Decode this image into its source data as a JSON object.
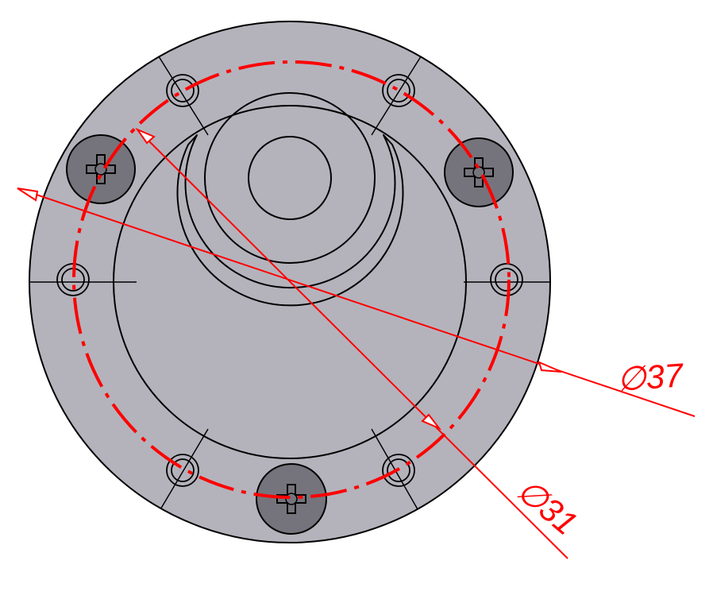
{
  "drawing": {
    "background": "#ffffff",
    "part_fill": "#b4b3bc",
    "screw_fill": "#75747c",
    "outline_color": "#000000",
    "dimension_color": "#ff0000"
  },
  "dimensions": {
    "outer": {
      "symbol": "∅",
      "value": "37"
    },
    "inner": {
      "symbol": "∅",
      "value": "31"
    }
  }
}
